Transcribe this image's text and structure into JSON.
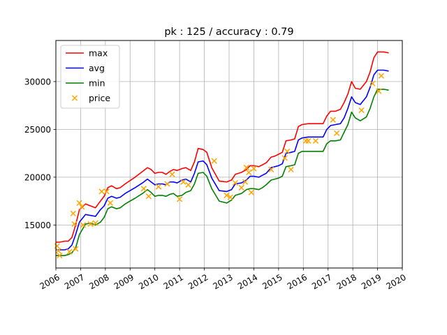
{
  "chart_data": {
    "type": "line",
    "title": "pk : 125 / accuracy : 0.79",
    "xlabel": "",
    "ylabel": "",
    "xlim": [
      2006.0,
      2020.0
    ],
    "ylim": [
      10500,
      34300
    ],
    "grid": true,
    "legend_position": "top-left",
    "x_ticks": [
      2006,
      2007,
      2008,
      2009,
      2010,
      2011,
      2012,
      2013,
      2014,
      2015,
      2016,
      2017,
      2018,
      2019,
      2020
    ],
    "x_tick_labels": [
      "2006",
      "2007",
      "2008",
      "2009",
      "2010",
      "2011",
      "2012",
      "2013",
      "2014",
      "2015",
      "2016",
      "2017",
      "2018",
      "2019",
      "2020"
    ],
    "y_ticks": [
      15000,
      20000,
      25000,
      30000
    ],
    "y_tick_labels": [
      "15000",
      "20000",
      "25000",
      "30000"
    ],
    "series": [
      {
        "name": "max",
        "kind": "line",
        "color": "#ff0000",
        "x": [
          2006.0,
          2006.15,
          2006.35,
          2006.5,
          2006.65,
          2006.8,
          2006.95,
          2007.2,
          2007.4,
          2007.6,
          2007.8,
          2007.95,
          2008.1,
          2008.25,
          2008.45,
          2008.6,
          2008.8,
          2009.2,
          2009.5,
          2009.7,
          2009.85,
          2010.0,
          2010.15,
          2010.3,
          2010.45,
          2010.6,
          2010.75,
          2010.9,
          2011.1,
          2011.25,
          2011.45,
          2011.6,
          2011.75,
          2011.95,
          2012.1,
          2012.3,
          2012.6,
          2012.9,
          2013.1,
          2013.25,
          2013.5,
          2013.7,
          2013.85,
          2014.0,
          2014.2,
          2014.35,
          2014.5,
          2014.7,
          2014.85,
          2015.0,
          2015.15,
          2015.3,
          2015.5,
          2015.65,
          2015.8,
          2015.95,
          2016.2,
          2016.5,
          2016.8,
          2016.95,
          2017.1,
          2017.3,
          2017.5,
          2017.65,
          2017.8,
          2017.95,
          2018.1,
          2018.3,
          2018.55,
          2018.7,
          2018.85,
          2019.0,
          2019.1,
          2019.25,
          2019.45
        ],
        "y": [
          13200,
          13200,
          13300,
          13300,
          13700,
          15000,
          16600,
          17200,
          17000,
          16800,
          17500,
          18000,
          18900,
          19100,
          18800,
          18900,
          19300,
          20000,
          20600,
          21000,
          20800,
          20400,
          20500,
          20500,
          20300,
          20600,
          20800,
          20700,
          20900,
          21000,
          20700,
          21600,
          23000,
          22900,
          22600,
          21000,
          19600,
          19500,
          19700,
          20300,
          20500,
          20800,
          21200,
          21200,
          21100,
          21300,
          21500,
          22100,
          22200,
          22400,
          22600,
          23800,
          23900,
          24000,
          25300,
          25500,
          25600,
          25600,
          25600,
          26400,
          26900,
          26900,
          27100,
          27800,
          28700,
          30000,
          29300,
          29200,
          30000,
          31000,
          32500,
          33100,
          33100,
          33100,
          33000
        ]
      },
      {
        "name": "avg",
        "kind": "line",
        "color": "#0000ff",
        "x": [
          2006.0,
          2006.15,
          2006.35,
          2006.5,
          2006.65,
          2006.8,
          2006.95,
          2007.2,
          2007.4,
          2007.6,
          2007.8,
          2007.95,
          2008.1,
          2008.25,
          2008.45,
          2008.6,
          2008.8,
          2009.2,
          2009.5,
          2009.7,
          2009.85,
          2010.0,
          2010.15,
          2010.3,
          2010.45,
          2010.6,
          2010.75,
          2010.9,
          2011.1,
          2011.25,
          2011.45,
          2011.6,
          2011.75,
          2011.95,
          2012.1,
          2012.3,
          2012.6,
          2012.9,
          2013.1,
          2013.25,
          2013.5,
          2013.7,
          2013.85,
          2014.0,
          2014.2,
          2014.35,
          2014.5,
          2014.7,
          2014.85,
          2015.0,
          2015.15,
          2015.3,
          2015.5,
          2015.65,
          2015.8,
          2015.95,
          2016.2,
          2016.5,
          2016.8,
          2016.95,
          2017.1,
          2017.3,
          2017.5,
          2017.65,
          2017.8,
          2017.95,
          2018.1,
          2018.3,
          2018.55,
          2018.7,
          2018.85,
          2019.0,
          2019.1,
          2019.25,
          2019.45
        ],
        "y": [
          12400,
          12400,
          12400,
          12500,
          12900,
          14000,
          15300,
          16100,
          16000,
          15900,
          16600,
          17000,
          17800,
          18000,
          17800,
          17900,
          18300,
          18900,
          19400,
          19800,
          19500,
          19200,
          19300,
          19300,
          19200,
          19500,
          19500,
          19400,
          19700,
          19800,
          19500,
          20400,
          21600,
          21700,
          21300,
          19900,
          18600,
          18500,
          18700,
          19300,
          19400,
          19700,
          20100,
          20100,
          20000,
          20200,
          20400,
          21000,
          21100,
          21200,
          21400,
          22500,
          22600,
          22700,
          23900,
          24100,
          24200,
          24200,
          24200,
          25000,
          25400,
          25500,
          25600,
          26200,
          27200,
          28400,
          27800,
          27600,
          28400,
          29400,
          30700,
          31200,
          31200,
          31200,
          31100
        ]
      },
      {
        "name": "min",
        "kind": "line",
        "color": "#008000",
        "x": [
          2006.0,
          2006.15,
          2006.35,
          2006.5,
          2006.65,
          2006.8,
          2006.95,
          2007.2,
          2007.4,
          2007.6,
          2007.8,
          2007.95,
          2008.1,
          2008.25,
          2008.45,
          2008.6,
          2008.8,
          2009.2,
          2009.5,
          2009.7,
          2009.85,
          2010.0,
          2010.15,
          2010.3,
          2010.45,
          2010.6,
          2010.75,
          2010.9,
          2011.1,
          2011.25,
          2011.45,
          2011.6,
          2011.75,
          2011.95,
          2012.1,
          2012.3,
          2012.6,
          2012.9,
          2013.1,
          2013.25,
          2013.5,
          2013.7,
          2013.85,
          2014.0,
          2014.2,
          2014.35,
          2014.5,
          2014.7,
          2014.85,
          2015.0,
          2015.15,
          2015.3,
          2015.5,
          2015.65,
          2015.8,
          2015.95,
          2016.2,
          2016.5,
          2016.8,
          2016.95,
          2017.1,
          2017.3,
          2017.5,
          2017.65,
          2017.8,
          2017.95,
          2018.1,
          2018.3,
          2018.55,
          2018.7,
          2018.85,
          2019.0,
          2019.1,
          2019.25,
          2019.45
        ],
        "y": [
          11800,
          11800,
          11800,
          11900,
          12100,
          12600,
          14000,
          15100,
          15200,
          15000,
          15300,
          15800,
          16700,
          16900,
          16700,
          16800,
          17200,
          17800,
          18300,
          18700,
          18400,
          18000,
          18100,
          18100,
          18000,
          18200,
          18300,
          18000,
          18100,
          18400,
          18600,
          19300,
          20400,
          20500,
          20100,
          18800,
          17500,
          17300,
          17600,
          18100,
          18300,
          18700,
          18800,
          18800,
          18700,
          18900,
          19200,
          19700,
          19800,
          19900,
          20100,
          21100,
          21200,
          21300,
          22500,
          22700,
          22700,
          22700,
          22700,
          23500,
          23800,
          23800,
          23900,
          24700,
          25500,
          26800,
          26200,
          25900,
          26300,
          27200,
          28400,
          29200,
          29200,
          29200,
          29100
        ]
      },
      {
        "name": "price",
        "kind": "scatter",
        "color": "#ffa500",
        "marker": "x",
        "x": [
          2006.05,
          2006.1,
          2006.15,
          2006.55,
          2006.7,
          2006.75,
          2006.8,
          2006.95,
          2007.05,
          2007.1,
          2007.4,
          2007.6,
          2007.85,
          2008.05,
          2008.2,
          2009.55,
          2009.75,
          2010.15,
          2010.5,
          2010.7,
          2011.0,
          2011.15,
          2011.35,
          2012.4,
          2012.9,
          2013.05,
          2013.25,
          2013.5,
          2013.65,
          2013.7,
          2013.8,
          2013.9,
          2014.0,
          2014.7,
          2015.25,
          2015.35,
          2015.5,
          2016.1,
          2016.2,
          2016.5,
          2017.2,
          2017.35,
          2018.35,
          2018.8,
          2019.05,
          2019.15
        ],
        "y": [
          12800,
          12300,
          11800,
          12200,
          16200,
          15100,
          12500,
          17300,
          16900,
          15000,
          15100,
          15200,
          18500,
          18500,
          17300,
          18800,
          18000,
          19000,
          19300,
          20300,
          17700,
          19500,
          19200,
          21700,
          18100,
          17900,
          19400,
          18900,
          19500,
          21000,
          20500,
          18400,
          20900,
          20800,
          22000,
          22700,
          20800,
          23800,
          23800,
          23800,
          26000,
          24600,
          27000,
          29800,
          29000,
          30600
        ]
      }
    ]
  }
}
